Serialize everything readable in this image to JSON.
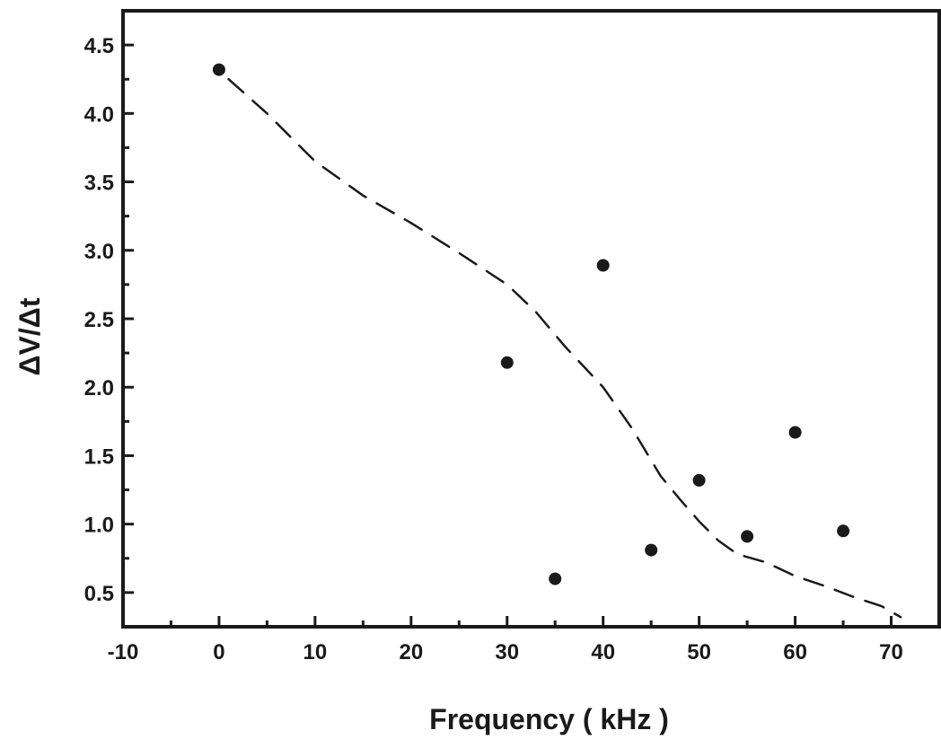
{
  "chart_data": {
    "type": "scatter",
    "title": "",
    "xlabel": "Frequency ( kHz )",
    "ylabel": "ΔV/Δt",
    "xlim": [
      -10,
      75
    ],
    "ylim": [
      0.25,
      4.75
    ],
    "x_ticks": [
      -10,
      0,
      10,
      20,
      30,
      40,
      50,
      60,
      70
    ],
    "x_tick_labels": [
      "-10",
      "0",
      "10",
      "20",
      "30",
      "40",
      "50",
      "60",
      "70"
    ],
    "y_ticks": [
      0.5,
      1.0,
      1.5,
      2.0,
      2.5,
      3.0,
      3.5,
      4.0,
      4.5
    ],
    "y_tick_labels": [
      "0.5",
      "1.0",
      "1.5",
      "2.0",
      "2.5",
      "3.0",
      "3.5",
      "4.0",
      "4.5"
    ],
    "grid": false,
    "series": [
      {
        "kind": "scatter",
        "marker": "filled-circle",
        "color": "#1a1a1a",
        "x": [
          0,
          30,
          35,
          40,
          45,
          50,
          55,
          60,
          65
        ],
        "y": [
          4.32,
          2.18,
          0.6,
          2.89,
          0.81,
          1.32,
          0.91,
          1.67,
          0.95
        ]
      },
      {
        "kind": "line",
        "style": "dashed",
        "color": "#1a1a1a",
        "x": [
          1,
          5,
          10,
          15,
          20,
          25,
          30,
          33,
          36,
          40,
          43,
          46,
          48,
          50,
          52,
          54,
          57,
          60,
          63,
          66,
          69,
          71
        ],
        "y": [
          4.25,
          4.0,
          3.65,
          3.4,
          3.2,
          2.98,
          2.75,
          2.55,
          2.3,
          2.0,
          1.7,
          1.35,
          1.18,
          1.02,
          0.88,
          0.78,
          0.72,
          0.62,
          0.55,
          0.47,
          0.4,
          0.32
        ]
      }
    ]
  }
}
